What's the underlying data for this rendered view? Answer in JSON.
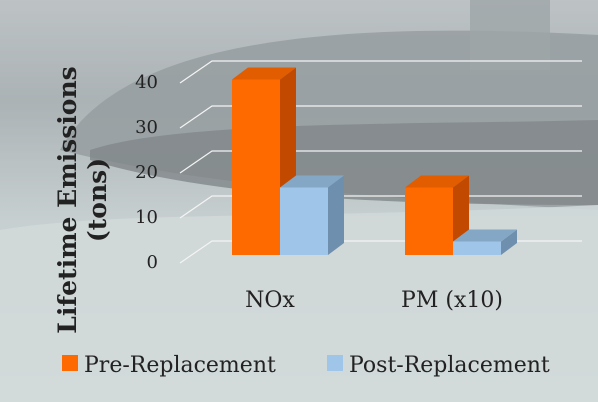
{
  "colors": {
    "pre_front": "#FF6A00",
    "pre_side": "#C14A00",
    "pre_top": "#E25C00",
    "post_front": "#9FC5E8",
    "post_side": "#6E8FAD",
    "post_top": "#84A7C6",
    "text": "#222222",
    "grid": "#F4F4F4",
    "overlay": "#FFFFFF"
  },
  "chart_data": {
    "type": "bar",
    "ylabel": "Lifetime Emissions (tons)",
    "ylabel_line1": "Lifetime Emissions",
    "ylabel_line2": "(tons)",
    "categories": [
      "NOx",
      "PM (x10)"
    ],
    "series": [
      {
        "name": "Pre-Replacement",
        "values": [
          39,
          15
        ]
      },
      {
        "name": "Post-Replacement",
        "values": [
          15,
          3
        ]
      }
    ],
    "ylim": [
      0,
      40
    ],
    "yticks": [
      0,
      10,
      20,
      30,
      40
    ],
    "legend": "bottom",
    "grid": true,
    "style": "3d"
  }
}
